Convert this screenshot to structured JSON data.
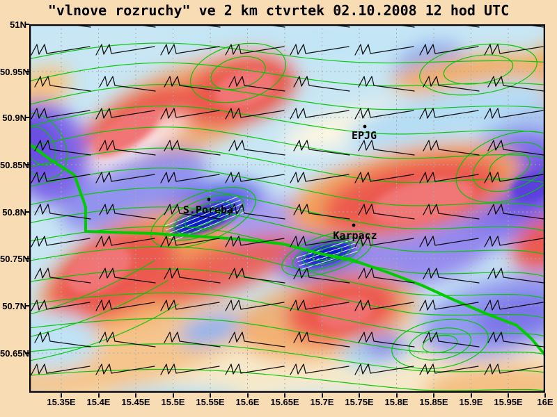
{
  "title": "\"vlnove rozruchy\" ve 2 km ctvrtek 02.10.2008 12 hod UTC",
  "map": {
    "places": [
      {
        "id": "epjg",
        "label": "EPJG"
      },
      {
        "id": "sporeba",
        "label": "S.Poreba"
      },
      {
        "id": "karpacz",
        "label": "Karpacz"
      }
    ],
    "layers": [
      {
        "name": "shaded-wave-disturbance-field",
        "style": "rainbow shading blue-to-red"
      },
      {
        "name": "contour-lines",
        "color": "#00c800"
      },
      {
        "name": "country-border-line",
        "color": "#00cc00"
      },
      {
        "name": "wind-barbs",
        "color": "#000000"
      },
      {
        "name": "grid-lines",
        "color": "#aaaaaa",
        "style": "dashed"
      }
    ]
  },
  "axes": {
    "lat_ticks": [
      "51N",
      "50.95N",
      "50.9N",
      "50.85N",
      "50.8N",
      "50.75N",
      "50.7N",
      "50.65N"
    ],
    "lon_ticks": [
      "15.35E",
      "15.4E",
      "15.45E",
      "15.5E",
      "15.55E",
      "15.6E",
      "15.65E",
      "15.7E",
      "15.75E",
      "15.8E",
      "15.85E",
      "15.9E",
      "15.95E",
      "16E"
    ],
    "lat_range_labeled": [
      "51N",
      "50.65N"
    ],
    "lon_range_labeled": [
      "15.35E",
      "16E"
    ]
  },
  "palette": {
    "page_background": "#f8dcb4",
    "contour_green": "#00c800",
    "border_green": "#00cc00",
    "shade_scale": [
      "#0f1bc4",
      "#1a27cf",
      "#4a55e3",
      "#6f74e8",
      "#8d8cee",
      "#a79df0",
      "#cde9f7",
      "#ffffff",
      "#f8ecc8",
      "#f3a55e",
      "#ec5a50",
      "#f17575"
    ]
  }
}
